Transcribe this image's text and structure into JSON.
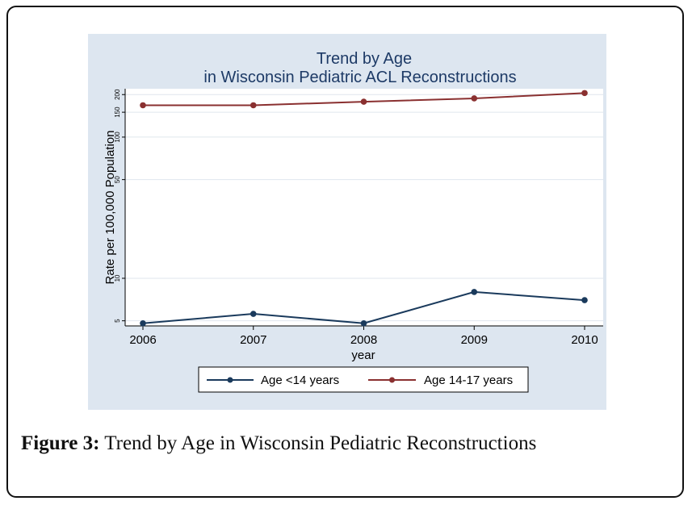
{
  "caption": {
    "label": "Figure 3:",
    "text": " Trend by Age in Wisconsin Pediatric Reconstructions"
  },
  "chart_data": {
    "type": "line",
    "title": "Trend by Age",
    "subtitle": "in Wisconsin Pediatric ACL Reconstructions",
    "xlabel": "year",
    "ylabel": "Rate per 100,000 Population",
    "y_scale": "log",
    "ylim": [
      4.6,
      220
    ],
    "x_ticks": [
      "2006",
      "2007",
      "2008",
      "2009",
      "2010"
    ],
    "y_ticks": [
      "5",
      "10",
      "50",
      "100",
      "150",
      "200"
    ],
    "x": [
      2006,
      2007,
      2008,
      2009,
      2010
    ],
    "series": [
      {
        "name": "Age <14 years",
        "color": "#1a3a5c",
        "values": [
          4.8,
          5.6,
          4.8,
          8.0,
          7.0
        ]
      },
      {
        "name": "Age 14-17 years",
        "color": "#8a3030",
        "values": [
          168,
          168,
          178,
          188,
          205
        ]
      }
    ],
    "grid": true,
    "legend_position": "bottom"
  }
}
